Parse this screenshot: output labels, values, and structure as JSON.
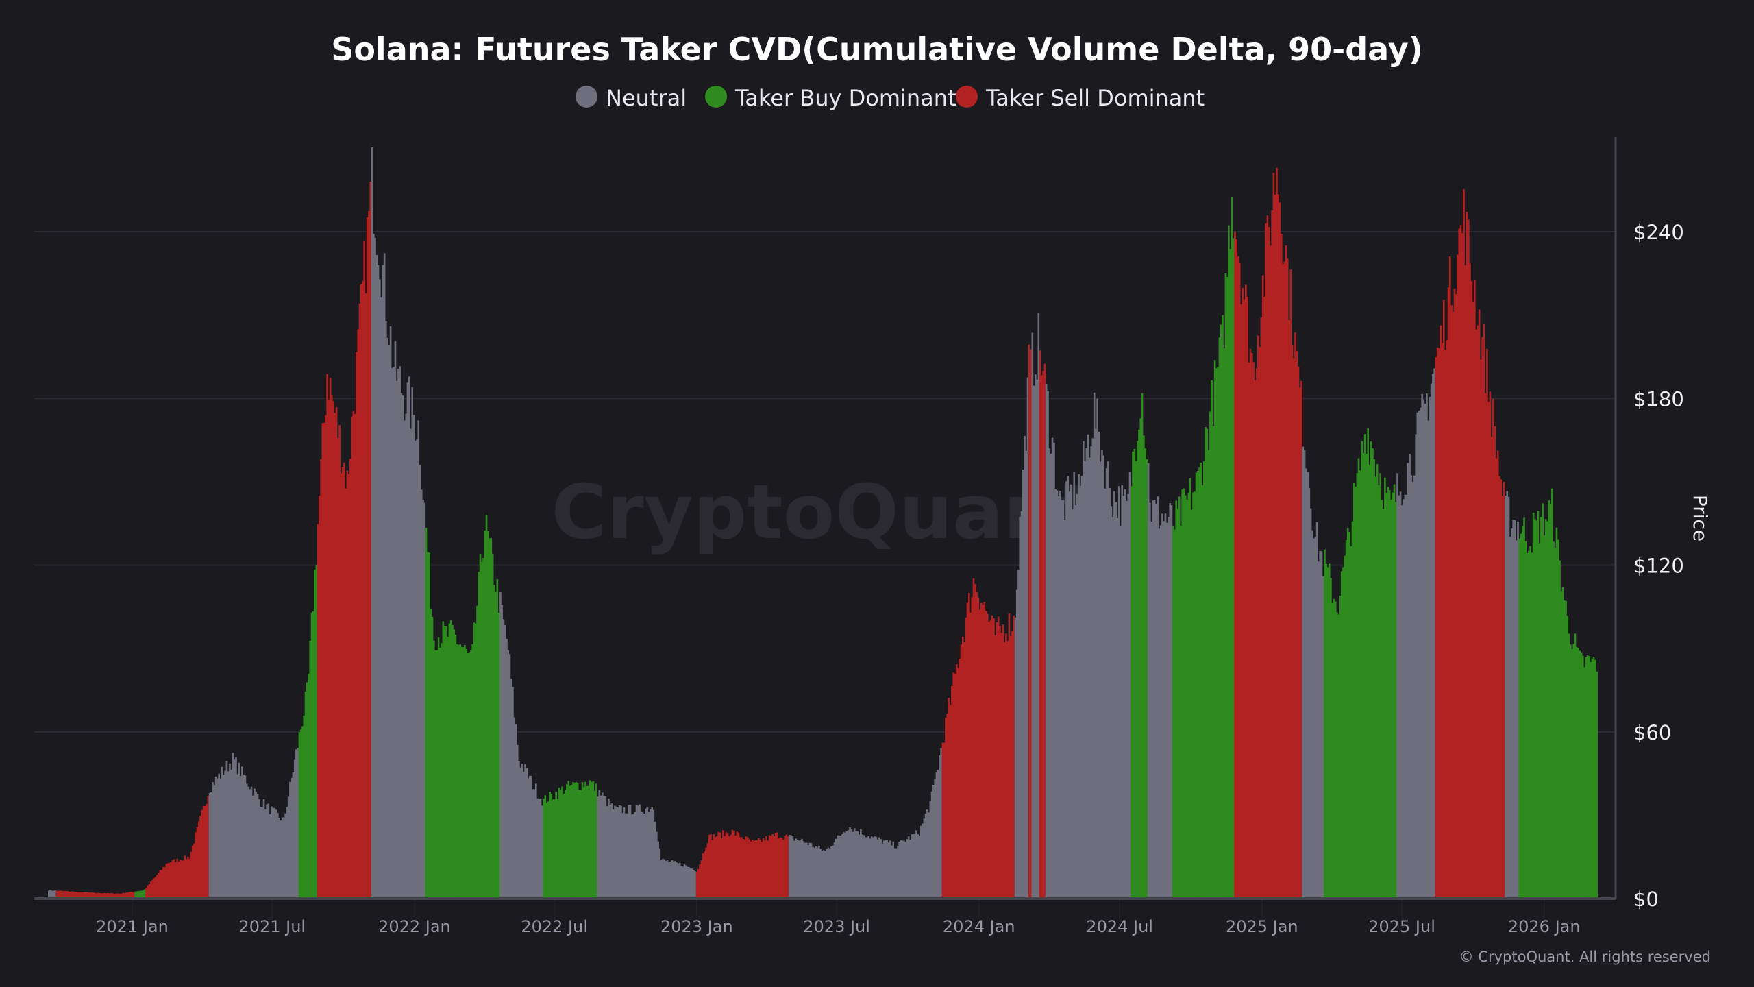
{
  "chart_data": {
    "type": "bar",
    "title": "Solana: Futures Taker CVD(Cumulative Volume Delta, 90-day)",
    "xlabel": "",
    "ylabel": "Price",
    "ylim": [
      0,
      270
    ],
    "yticks": [
      0,
      60,
      120,
      180,
      240
    ],
    "ytick_labels": [
      "$0",
      "$60",
      "$120",
      "$180",
      "$240"
    ],
    "xticks": [
      "2021-01-01",
      "2021-07-01",
      "2022-01-01",
      "2022-07-01",
      "2023-01-01",
      "2023-07-01",
      "2024-01-01",
      "2024-07-01",
      "2025-01-01",
      "2025-07-01",
      "2026-01-01"
    ],
    "xtick_labels": [
      "2021 Jan",
      "2021 Jul",
      "2022 Jan",
      "2022 Jul",
      "2023 Jan",
      "2023 Jul",
      "2024 Jan",
      "2024 Jul",
      "2025 Jan",
      "2025 Jul",
      "2026 Jan"
    ],
    "grid": true,
    "legend_position": "top-center",
    "legend": [
      {
        "name": "Neutral",
        "color": "#6e6e7c"
      },
      {
        "name": "Taker Buy Dominant",
        "color": "#2e8b1e"
      },
      {
        "name": "Taker Sell Dominant",
        "color": "#b22222"
      }
    ],
    "price": [
      [
        "2020-09-14",
        3
      ],
      [
        "2020-10-15",
        2.5
      ],
      [
        "2020-11-15",
        2
      ],
      [
        "2020-12-15",
        1.8
      ],
      [
        "2021-01-15",
        3
      ],
      [
        "2021-02-15",
        13
      ],
      [
        "2021-03-15",
        15
      ],
      [
        "2021-04-10",
        40
      ],
      [
        "2021-05-10",
        50
      ],
      [
        "2021-06-15",
        35
      ],
      [
        "2021-07-15",
        28
      ],
      [
        "2021-08-15",
        75
      ],
      [
        "2021-09-09",
        190
      ],
      [
        "2021-10-05",
        150
      ],
      [
        "2021-11-06",
        258
      ],
      [
        "2021-12-05",
        190
      ],
      [
        "2022-01-05",
        170
      ],
      [
        "2022-01-25",
        95
      ],
      [
        "2022-02-20",
        95
      ],
      [
        "2022-03-15",
        85
      ],
      [
        "2022-04-01",
        135
      ],
      [
        "2022-05-01",
        90
      ],
      [
        "2022-05-15",
        50
      ],
      [
        "2022-06-15",
        35
      ],
      [
        "2022-07-15",
        40
      ],
      [
        "2022-08-15",
        42
      ],
      [
        "2022-09-15",
        32
      ],
      [
        "2022-10-15",
        32
      ],
      [
        "2022-11-05",
        33
      ],
      [
        "2022-11-15",
        14
      ],
      [
        "2022-12-15",
        12
      ],
      [
        "2023-01-01",
        10
      ],
      [
        "2023-01-15",
        22
      ],
      [
        "2023-02-15",
        24
      ],
      [
        "2023-03-15",
        20
      ],
      [
        "2023-04-15",
        23
      ],
      [
        "2023-05-15",
        21
      ],
      [
        "2023-06-15",
        17
      ],
      [
        "2023-07-15",
        26
      ],
      [
        "2023-08-15",
        22
      ],
      [
        "2023-09-15",
        19
      ],
      [
        "2023-10-15",
        24
      ],
      [
        "2023-10-30",
        35
      ],
      [
        "2023-11-15",
        58
      ],
      [
        "2023-12-10",
        95
      ],
      [
        "2023-12-25",
        115
      ],
      [
        "2024-01-20",
        95
      ],
      [
        "2024-02-15",
        100
      ],
      [
        "2024-03-05",
        190
      ],
      [
        "2024-03-18",
        200
      ],
      [
        "2024-04-15",
        140
      ],
      [
        "2024-05-10",
        150
      ],
      [
        "2024-05-28",
        175
      ],
      [
        "2024-06-20",
        145
      ],
      [
        "2024-07-10",
        140
      ],
      [
        "2024-07-28",
        185
      ],
      [
        "2024-08-10",
        140
      ],
      [
        "2024-09-10",
        135
      ],
      [
        "2024-10-10",
        150
      ],
      [
        "2024-11-10",
        200
      ],
      [
        "2024-11-22",
        255
      ],
      [
        "2024-12-20",
        190
      ],
      [
        "2025-01-19",
        265
      ],
      [
        "2025-02-15",
        190
      ],
      [
        "2025-03-10",
        130
      ],
      [
        "2025-04-08",
        105
      ],
      [
        "2025-05-15",
        170
      ],
      [
        "2025-06-15",
        140
      ],
      [
        "2025-07-15",
        160
      ],
      [
        "2025-08-15",
        195
      ],
      [
        "2025-09-18",
        245
      ],
      [
        "2025-10-15",
        195
      ],
      [
        "2025-11-10",
        140
      ],
      [
        "2025-12-10",
        130
      ],
      [
        "2026-01-10",
        140
      ],
      [
        "2026-01-30",
        100
      ],
      [
        "2026-02-15",
        85
      ],
      [
        "2026-03-10",
        85
      ]
    ],
    "regimes": [
      {
        "start": "2020-09-14",
        "end": "2020-09-24",
        "state": "Neutral"
      },
      {
        "start": "2020-09-24",
        "end": "2021-01-04",
        "state": "Taker Sell Dominant"
      },
      {
        "start": "2021-01-04",
        "end": "2021-01-18",
        "state": "Taker Buy Dominant"
      },
      {
        "start": "2021-01-18",
        "end": "2021-04-10",
        "state": "Taker Sell Dominant"
      },
      {
        "start": "2021-04-10",
        "end": "2021-08-03",
        "state": "Neutral"
      },
      {
        "start": "2021-08-03",
        "end": "2021-08-28",
        "state": "Taker Buy Dominant"
      },
      {
        "start": "2021-08-28",
        "end": "2021-11-06",
        "state": "Taker Sell Dominant"
      },
      {
        "start": "2021-11-06",
        "end": "2022-01-15",
        "state": "Neutral"
      },
      {
        "start": "2022-01-15",
        "end": "2022-04-20",
        "state": "Taker Buy Dominant"
      },
      {
        "start": "2022-04-20",
        "end": "2022-06-15",
        "state": "Neutral"
      },
      {
        "start": "2022-06-15",
        "end": "2022-08-25",
        "state": "Taker Buy Dominant"
      },
      {
        "start": "2022-08-25",
        "end": "2022-12-31",
        "state": "Neutral"
      },
      {
        "start": "2022-12-31",
        "end": "2023-04-29",
        "state": "Taker Sell Dominant"
      },
      {
        "start": "2023-04-29",
        "end": "2023-11-13",
        "state": "Neutral"
      },
      {
        "start": "2023-11-13",
        "end": "2024-02-15",
        "state": "Taker Sell Dominant"
      },
      {
        "start": "2024-02-15",
        "end": "2024-03-05",
        "state": "Neutral"
      },
      {
        "start": "2024-03-05",
        "end": "2024-03-09",
        "state": "Taker Sell Dominant"
      },
      {
        "start": "2024-03-09",
        "end": "2024-03-19",
        "state": "Neutral"
      },
      {
        "start": "2024-03-19",
        "end": "2024-03-27",
        "state": "Taker Sell Dominant"
      },
      {
        "start": "2024-03-27",
        "end": "2024-07-15",
        "state": "Neutral"
      },
      {
        "start": "2024-07-15",
        "end": "2024-08-05",
        "state": "Taker Buy Dominant"
      },
      {
        "start": "2024-08-05",
        "end": "2024-09-06",
        "state": "Neutral"
      },
      {
        "start": "2024-09-06",
        "end": "2024-11-26",
        "state": "Taker Buy Dominant"
      },
      {
        "start": "2024-11-26",
        "end": "2025-02-21",
        "state": "Taker Sell Dominant"
      },
      {
        "start": "2025-02-21",
        "end": "2025-03-21",
        "state": "Neutral"
      },
      {
        "start": "2025-03-21",
        "end": "2025-06-24",
        "state": "Taker Buy Dominant"
      },
      {
        "start": "2025-06-24",
        "end": "2025-08-12",
        "state": "Neutral"
      },
      {
        "start": "2025-08-12",
        "end": "2025-11-10",
        "state": "Taker Sell Dominant"
      },
      {
        "start": "2025-11-10",
        "end": "2025-11-28",
        "state": "Neutral"
      },
      {
        "start": "2025-11-28",
        "end": "2026-03-10",
        "state": "Taker Buy Dominant"
      }
    ]
  },
  "watermark": "CryptoQuant",
  "footer": "© CryptoQuant. All rights reserved",
  "colors": {
    "background": "#1a1a1f",
    "grid": "#2a2a31",
    "axis": "#44444c"
  }
}
